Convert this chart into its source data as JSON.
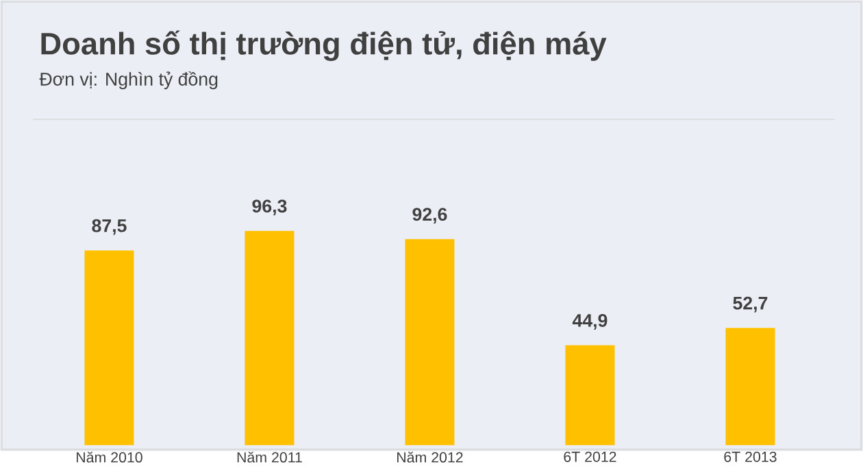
{
  "chart_data": {
    "type": "bar",
    "title": "Doanh số thị trường điện tử, điện máy",
    "subtitle": "Đơn vị: Nghìn tỷ đồng",
    "categories": [
      "Năm 2010",
      "Năm 2011",
      "Năm 2012",
      "6T 2012",
      "6T 2013"
    ],
    "values": [
      87.5,
      96.3,
      92.6,
      44.9,
      52.7
    ],
    "value_labels": [
      "87,5",
      "96,3",
      "92,6",
      "44,9",
      "52,7"
    ],
    "color": "#ffc000",
    "tick_labels": "x"
  }
}
